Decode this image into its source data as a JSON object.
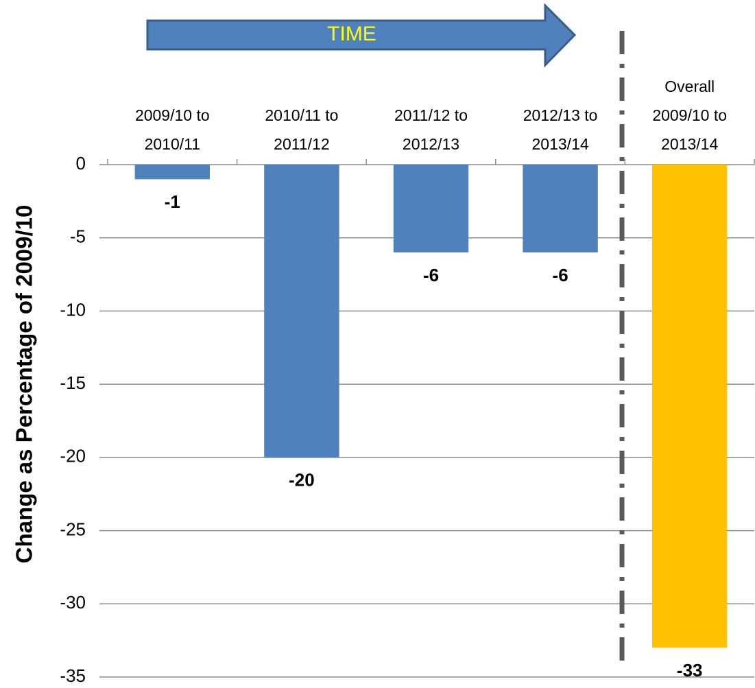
{
  "chart_data": {
    "type": "bar",
    "ylabel": "Change as Percentage of 2009/10",
    "annotations": [
      "TIME"
    ],
    "categories": [
      "2009/10 to\n2010/11",
      "2010/11 to\n2011/12",
      "2011/12 to\n2012/13",
      "2012/13 to\n2013/14",
      "Overall\n2009/10 to\n2013/14"
    ],
    "values": [
      -1,
      -20,
      -6,
      -6,
      -33
    ],
    "colors": [
      "#4f81bd",
      "#4f81bd",
      "#4f81bd",
      "#4f81bd",
      "#ffc000"
    ],
    "ylim": [
      -35,
      0
    ],
    "yticks": [
      0,
      -5,
      -10,
      -15,
      -20,
      -25,
      -30,
      -35
    ],
    "grid": true
  }
}
